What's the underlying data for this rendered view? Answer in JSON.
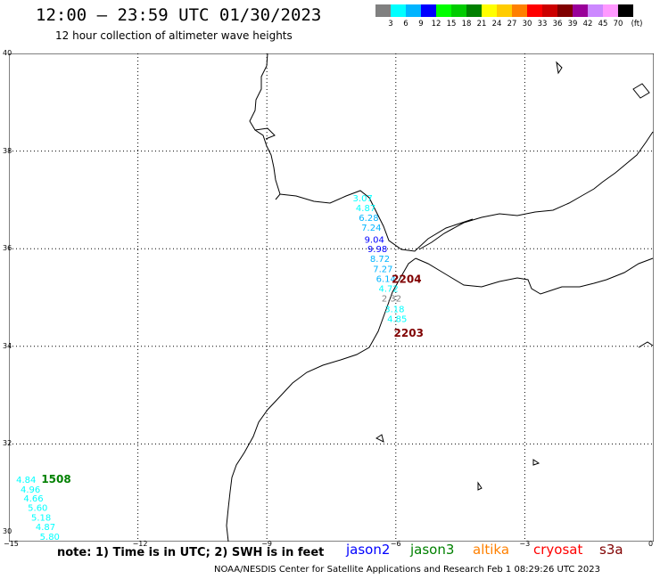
{
  "header": {
    "title": "12:00 – 23:59 UTC 01/30/2023",
    "subtitle": "12 hour collection of altimeter wave heights"
  },
  "legend": {
    "unit": "(ft)",
    "colors": [
      "#808080",
      "#00ffff",
      "#00b4ff",
      "#0000ff",
      "#00ff00",
      "#00cc00",
      "#008000",
      "#ffff00",
      "#ffcc00",
      "#ff8000",
      "#ff0000",
      "#cc0000",
      "#800000",
      "#990099",
      "#cc88ff",
      "#ff99ff",
      "#000000"
    ],
    "labels": [
      "3",
      "6",
      "9",
      "12",
      "15",
      "18",
      "21",
      "24",
      "27",
      "30",
      "33",
      "36",
      "39",
      "42",
      "45",
      "70"
    ]
  },
  "map": {
    "lon_range": [
      -15,
      0
    ],
    "lat_range": [
      30,
      40
    ],
    "lon_ticks": [
      "−15",
      "−12",
      "−9",
      "−6",
      "−3",
      "0"
    ],
    "lat_ticks": [
      "30",
      "32",
      "34",
      "36",
      "38",
      "40"
    ],
    "track_labels": [
      {
        "text": "2204",
        "color": "#800000",
        "lon": -5.75,
        "lat": 35.3
      },
      {
        "text": "2203",
        "color": "#800000",
        "lon": -5.7,
        "lat": 34.2
      },
      {
        "text": "1508",
        "color": "#008000",
        "lon": -13.9,
        "lat": 31.2
      }
    ],
    "points": [
      {
        "v": "3.07",
        "color": "#00ffff",
        "lon": -6.77,
        "lat": 36.97
      },
      {
        "v": "4.87",
        "color": "#00ffff",
        "lon": -6.7,
        "lat": 36.77
      },
      {
        "v": "6.28",
        "color": "#00b4ff",
        "lon": -6.63,
        "lat": 36.57
      },
      {
        "v": "7.24",
        "color": "#00b4ff",
        "lon": -6.57,
        "lat": 36.37
      },
      {
        "v": "9.04",
        "color": "#0000ff",
        "lon": -6.5,
        "lat": 36.12
      },
      {
        "v": "9.98",
        "color": "#0000ff",
        "lon": -6.43,
        "lat": 35.93
      },
      {
        "v": "8.72",
        "color": "#00b4ff",
        "lon": -6.37,
        "lat": 35.73
      },
      {
        "v": "7.27",
        "color": "#00b4ff",
        "lon": -6.3,
        "lat": 35.52
      },
      {
        "v": "6.14",
        "color": "#00b4ff",
        "lon": -6.23,
        "lat": 35.32
      },
      {
        "v": "4.72",
        "color": "#00ffff",
        "lon": -6.17,
        "lat": 35.12
      },
      {
        "v": "2.32",
        "color": "#808080",
        "lon": -6.1,
        "lat": 34.92
      },
      {
        "v": "3.18",
        "color": "#00ffff",
        "lon": -6.03,
        "lat": 34.7
      },
      {
        "v": "4.85",
        "color": "#00ffff",
        "lon": -5.97,
        "lat": 34.5
      },
      {
        "v": "4.84",
        "color": "#00ffff",
        "lon": -14.6,
        "lat": 31.2
      },
      {
        "v": "4.96",
        "color": "#00ffff",
        "lon": -14.5,
        "lat": 31.0
      },
      {
        "v": "4.66",
        "color": "#00ffff",
        "lon": -14.43,
        "lat": 30.82
      },
      {
        "v": "5.60",
        "color": "#00ffff",
        "lon": -14.33,
        "lat": 30.63
      },
      {
        "v": "5.18",
        "color": "#00ffff",
        "lon": -14.25,
        "lat": 30.43
      },
      {
        "v": "4.87",
        "color": "#00ffff",
        "lon": -14.15,
        "lat": 30.24
      },
      {
        "v": "5.80",
        "color": "#00ffff",
        "lon": -14.05,
        "lat": 30.04
      }
    ]
  },
  "footer": {
    "note": "note: 1) Time is in UTC; 2) SWH is in feet",
    "satellites": [
      {
        "name": "jason2",
        "color": "#0000ff"
      },
      {
        "name": "jason3",
        "color": "#008000"
      },
      {
        "name": "altika",
        "color": "#ff8000"
      },
      {
        "name": "cryosat",
        "color": "#ff0000"
      },
      {
        "name": "s3a",
        "color": "#800000"
      }
    ],
    "credit": "NOAA/NESDIS Center for Satellite Applications and Research   Feb  1 08:29:26 UTC 2023"
  }
}
